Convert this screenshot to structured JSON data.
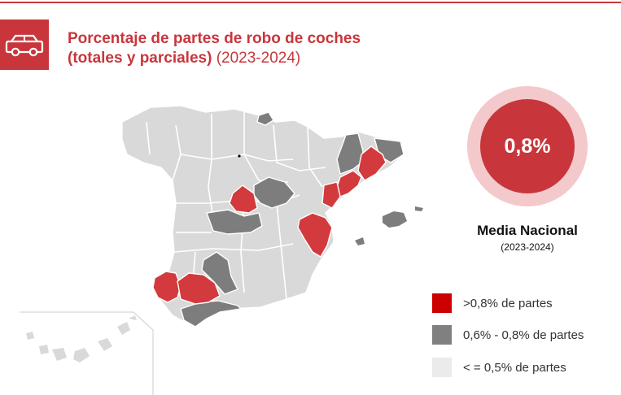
{
  "title": {
    "line1": "Porcentaje de partes de robo de coches",
    "line2_bold": "(totales y parciales)",
    "line2_years": "(2023-2024)"
  },
  "icon": "car-icon",
  "national": {
    "value": "0,8%",
    "label": "Media Nacional",
    "years": "(2023-2024)"
  },
  "colors": {
    "high": "#cc0000",
    "mid": "#808080",
    "low": "#ebebeb",
    "accent": "#c8363c",
    "map_red": "#d23a3d",
    "map_grey": "#7d7d7d",
    "map_light": "#d9d9d9"
  },
  "legend": [
    {
      "label": ">0,8% de partes",
      "color": "#cc0000"
    },
    {
      "label": "0,6% - 0,8% de partes",
      "color": "#808080"
    },
    {
      "label": "< = 0,5% de partes",
      "color": "#ebebeb"
    }
  ],
  "map": {
    "high_provinces": [
      "Barcelona",
      "Tarragona",
      "Castellón",
      "Valencia",
      "Madrid",
      "Huelva",
      "Sevilla"
    ],
    "mid_provinces": [
      "Gipuzkoa",
      "Lleida",
      "Girona",
      "Guadalajara",
      "Toledo",
      "Córdoba",
      "Málaga",
      "Baleares"
    ]
  }
}
